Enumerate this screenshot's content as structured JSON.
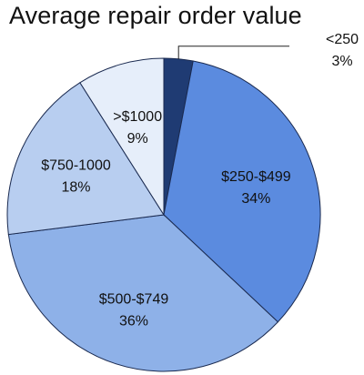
{
  "chart_data": {
    "type": "pie",
    "title": "Average repair order value",
    "slices": [
      {
        "label": "<250",
        "value": 3,
        "value_label": "3%",
        "color": "#1f3b73"
      },
      {
        "label": "$250-$499",
        "value": 34,
        "value_label": "34%",
        "color": "#5b8bdf"
      },
      {
        "label": "$500-$749",
        "value": 36,
        "value_label": "36%",
        "color": "#8eb1e8"
      },
      {
        "label": "$750-1000",
        "value": 18,
        "value_label": "18%",
        "color": "#b8cef0"
      },
      {
        "label": ">$1000",
        "value": 9,
        "value_label": "9%",
        "color": "#e6eefa"
      }
    ],
    "start_angle": "12 o'clock",
    "direction": "clockwise",
    "legend": "none",
    "small_slice_label": "outside with leader line"
  }
}
